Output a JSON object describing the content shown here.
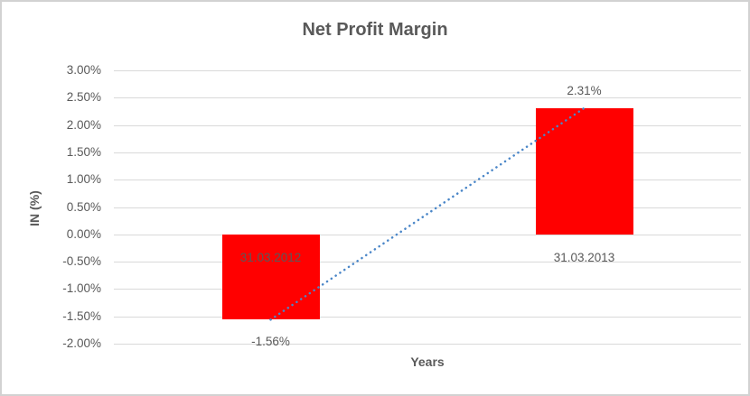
{
  "window": {
    "background": "#ffffff",
    "border_color": "#d2d2d2"
  },
  "chart_data": {
    "type": "bar",
    "title": "Net Profit Margin",
    "categories": [
      "31.03.2012",
      "31.03.2013"
    ],
    "series": [
      {
        "name": "Net Profit Margin",
        "values": [
          -1.56,
          2.31
        ]
      }
    ],
    "data_labels": [
      "-1.56%",
      "2.31%"
    ],
    "xlabel": "Years",
    "ylabel": "IN (%)",
    "ylim": [
      -2,
      3
    ],
    "ytick_step": 0.5,
    "ytick_labels": [
      "3.00%",
      "2.50%",
      "2.00%",
      "1.50%",
      "1.00%",
      "0.50%",
      "0.00%",
      "-0.50%",
      "-1.00%",
      "-1.50%",
      "-2.00%"
    ],
    "grid": true,
    "legend": "none",
    "bar_color": "#ff0000",
    "label_color": "#595959",
    "gridline_color": "#d9d9d9",
    "trendline": {
      "type": "linear",
      "style": "dotted",
      "color": "#4a86c8",
      "points": [
        -1.56,
        2.31
      ]
    }
  }
}
